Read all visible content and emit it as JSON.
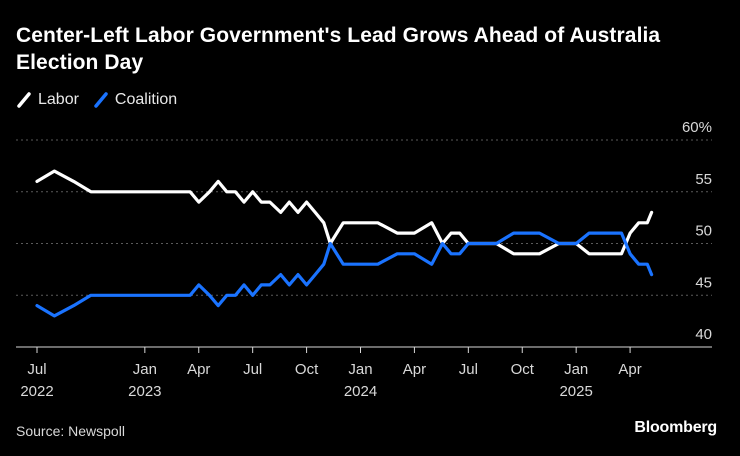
{
  "chart_data": {
    "type": "line",
    "title": "Center-Left Labor Government's Lead Grows Ahead of Australia Election Day",
    "xlabel": "",
    "ylabel": "",
    "ylim": [
      40,
      60
    ],
    "y_ticks": [
      "60%",
      "55",
      "50",
      "45",
      "40"
    ],
    "grid": true,
    "legend_position": "top-left",
    "x_axis_labels": [
      {
        "month": "Jul",
        "year": "2022"
      },
      {
        "month": "Jan",
        "year": "2023"
      },
      {
        "month": "Apr",
        "year": ""
      },
      {
        "month": "Jul",
        "year": ""
      },
      {
        "month": "Oct",
        "year": ""
      },
      {
        "month": "Jan",
        "year": "2024"
      },
      {
        "month": "Apr",
        "year": ""
      },
      {
        "month": "Jul",
        "year": ""
      },
      {
        "month": "Oct",
        "year": ""
      },
      {
        "month": "Jan",
        "year": "2025"
      },
      {
        "month": "Apr",
        "year": ""
      }
    ],
    "series": [
      {
        "name": "Labor",
        "color": "#ffffff",
        "x": [
          2022.5,
          2022.58,
          2022.67,
          2022.75,
          2022.83,
          2022.92,
          2023.0,
          2023.08,
          2023.17,
          2023.21,
          2023.25,
          2023.3,
          2023.34,
          2023.38,
          2023.42,
          2023.46,
          2023.5,
          2023.54,
          2023.58,
          2023.63,
          2023.67,
          2023.71,
          2023.75,
          2023.79,
          2023.83,
          2023.86,
          2023.92,
          2024.0,
          2024.08,
          2024.17,
          2024.21,
          2024.25,
          2024.33,
          2024.38,
          2024.42,
          2024.46,
          2024.5,
          2024.54,
          2024.58,
          2024.63,
          2024.71,
          2024.75,
          2024.83,
          2024.92,
          2024.96,
          2025.0,
          2025.06,
          2025.13,
          2025.21,
          2025.25,
          2025.29,
          2025.33,
          2025.35
        ],
        "values": [
          56,
          57,
          56,
          55,
          55,
          55,
          55,
          55,
          55,
          55,
          54,
          55,
          56,
          55,
          55,
          54,
          55,
          54,
          54,
          53,
          54,
          53,
          54,
          53,
          52,
          50,
          52,
          52,
          52,
          51,
          51,
          51,
          52,
          50,
          51,
          51,
          50,
          50,
          50,
          50,
          49,
          49,
          49,
          50,
          50,
          50,
          49,
          49,
          49,
          51,
          52,
          52,
          53
        ]
      },
      {
        "name": "Coalition",
        "color": "#1a73ff",
        "x": [
          2022.5,
          2022.58,
          2022.67,
          2022.75,
          2022.83,
          2022.92,
          2023.0,
          2023.08,
          2023.17,
          2023.21,
          2023.25,
          2023.3,
          2023.34,
          2023.38,
          2023.42,
          2023.46,
          2023.5,
          2023.54,
          2023.58,
          2023.63,
          2023.67,
          2023.71,
          2023.75,
          2023.79,
          2023.83,
          2023.86,
          2023.92,
          2024.0,
          2024.08,
          2024.17,
          2024.21,
          2024.25,
          2024.33,
          2024.38,
          2024.42,
          2024.46,
          2024.5,
          2024.54,
          2024.58,
          2024.63,
          2024.71,
          2024.75,
          2024.83,
          2024.92,
          2024.96,
          2025.0,
          2025.06,
          2025.13,
          2025.21,
          2025.25,
          2025.29,
          2025.33,
          2025.35
        ],
        "values": [
          44,
          43,
          44,
          45,
          45,
          45,
          45,
          45,
          45,
          45,
          46,
          45,
          44,
          45,
          45,
          46,
          45,
          46,
          46,
          47,
          46,
          47,
          46,
          47,
          48,
          50,
          48,
          48,
          48,
          49,
          49,
          49,
          48,
          50,
          49,
          49,
          50,
          50,
          50,
          50,
          51,
          51,
          51,
          50,
          50,
          50,
          51,
          51,
          51,
          49,
          48,
          48,
          47
        ]
      }
    ]
  },
  "source": "Source: Newspoll",
  "brand": "Bloomberg"
}
